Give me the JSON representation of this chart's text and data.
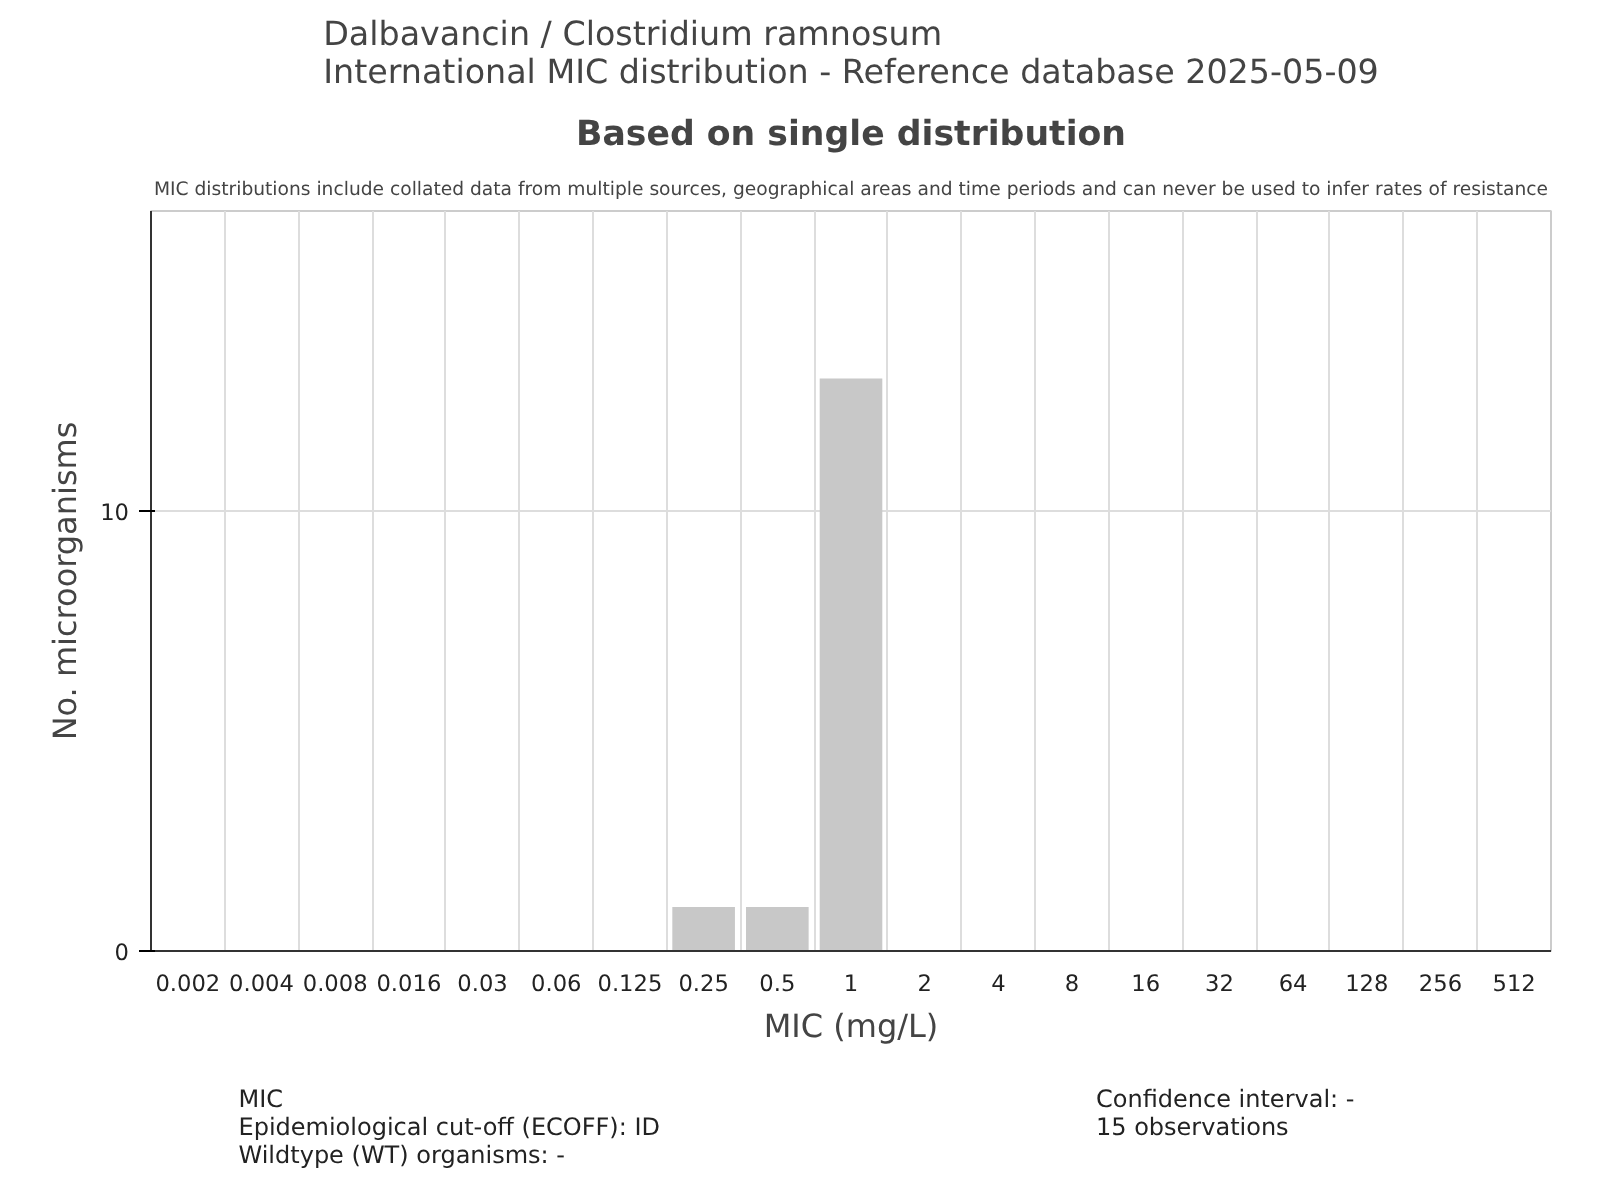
{
  "chart_data": {
    "type": "bar",
    "title": "Dalbavancin / Clostridium ramnosum\nInternational MIC distribution - Reference database 2025-05-09",
    "subtitle": "Based on single distribution",
    "annotations": [
      "MIC distributions include collated data from multiple sources, geographical areas and time periods and can never be used to infer rates of resistance",
      "MIC\nEpidemiological cut-off (ECOFF): ID\nWildtype (WT) organisms:  -",
      "Confidence interval: -\n15 observations"
    ],
    "xlabel": "MIC (mg/L)",
    "ylabel": "No. microorganisms",
    "categories": [
      "0.002",
      "0.004",
      "0.008",
      "0.016",
      "0.03",
      "0.06",
      "0.125",
      "0.25",
      "0.5",
      "1",
      "2",
      "4",
      "8",
      "16",
      "32",
      "64",
      "128",
      "256",
      "512"
    ],
    "values": [
      0,
      0,
      0,
      0,
      0,
      0,
      0,
      1,
      1,
      13,
      0,
      0,
      0,
      0,
      0,
      0,
      0,
      0,
      0
    ],
    "color": "#c8c8c8",
    "ylim": [
      0,
      16.8
    ],
    "yticks": [
      0,
      10
    ],
    "grid": true
  }
}
